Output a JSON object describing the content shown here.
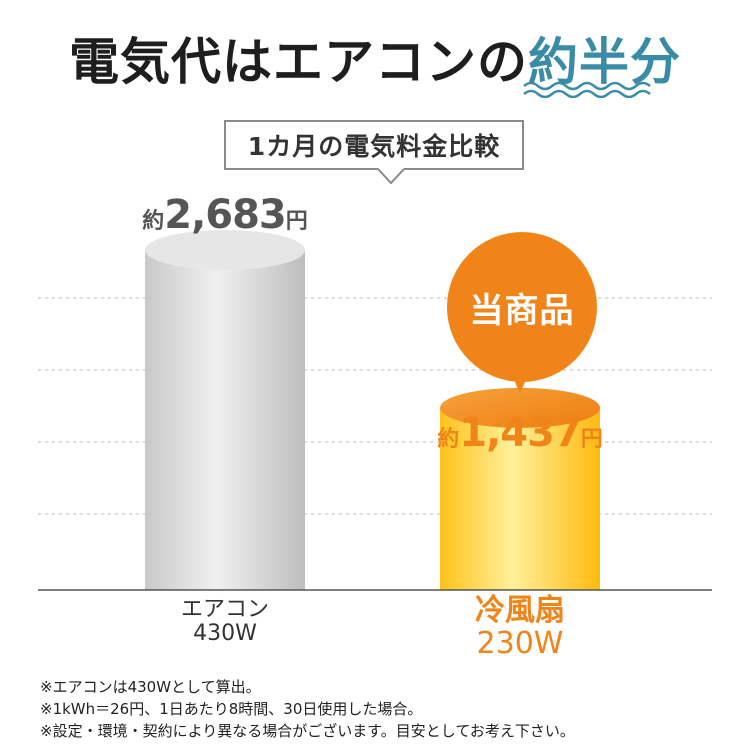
{
  "headline": {
    "text": "電気代はエアコンの",
    "accent": "約半分"
  },
  "callout": "1カ月の電気料金比較",
  "colors": {
    "accent_teal": "#3a8ca6",
    "orange": "#f08418",
    "gray_bar": "#d6d6d6",
    "yellow_bar": "#ffd21e"
  },
  "badge": "当商品",
  "chart_data": {
    "type": "bar",
    "title": "1カ月の電気料金比較",
    "categories": [
      "エアコン 430W",
      "冷風扇 230W"
    ],
    "values": [
      2683,
      1437
    ],
    "unit": "円",
    "ylim": [
      0,
      2683
    ],
    "grid": true,
    "value_labels": [
      {
        "prefix": "約",
        "number": "2,683",
        "unit": "円"
      },
      {
        "prefix": "約",
        "number": "1,437",
        "unit": "円"
      }
    ],
    "category_labels": [
      {
        "name": "エアコン",
        "watts": "430W"
      },
      {
        "name": "冷風扇",
        "watts": "230W"
      }
    ]
  },
  "notes": [
    "※エアコンは430Wとして算出。",
    "※1kWh＝26円、1日あたり8時間、30日使用した場合。",
    "※設定・環境・契約により異なる場合がございます。目安としてお考え下さい。"
  ]
}
